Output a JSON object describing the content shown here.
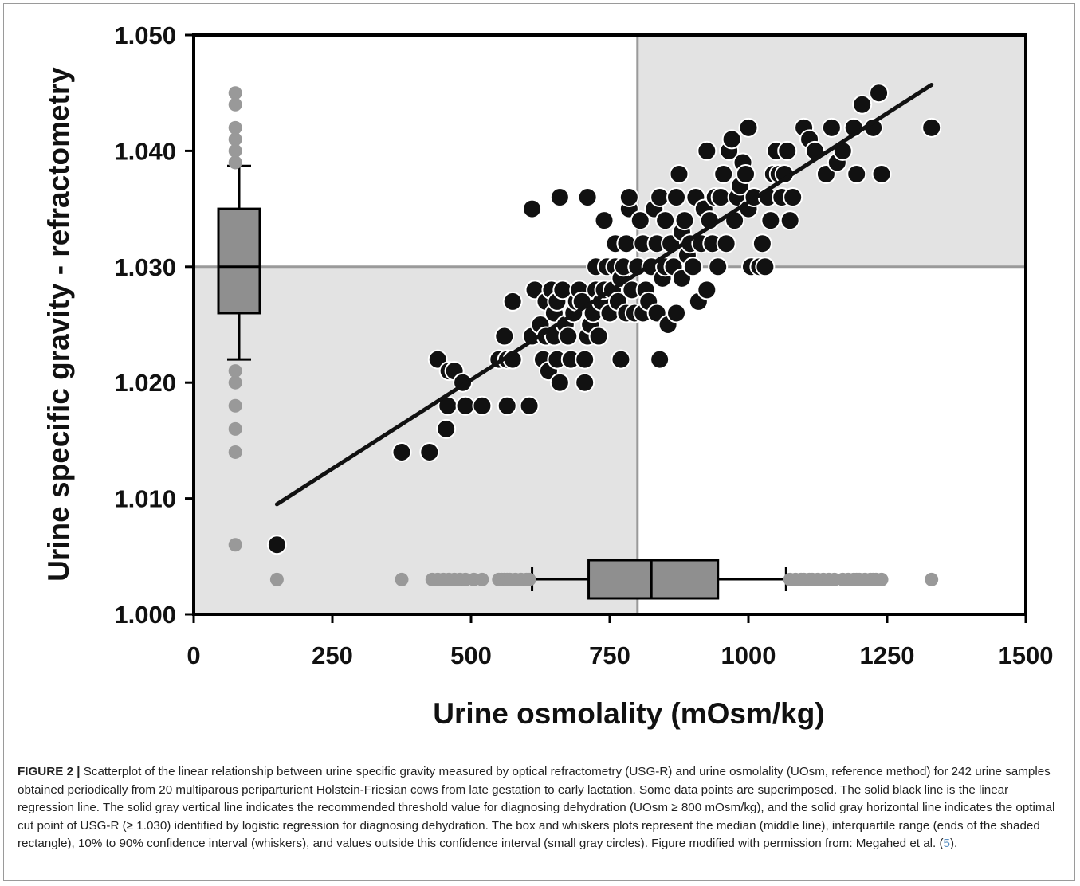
{
  "chart_data": {
    "type": "scatter",
    "xlabel": "Urine osmolality (mOsm/kg)",
    "ylabel": "Urine specific gravity - refractometry",
    "xlim": [
      0,
      1500
    ],
    "ylim": [
      1.0,
      1.05
    ],
    "xticks": [
      "0",
      "250",
      "500",
      "750",
      "1000",
      "1250",
      "1500"
    ],
    "yticks": [
      "1.000",
      "1.010",
      "1.020",
      "1.030",
      "1.040",
      "1.050"
    ],
    "xtick_values": [
      0,
      250,
      500,
      750,
      1000,
      1250,
      1500
    ],
    "ytick_values": [
      1.0,
      1.01,
      1.02,
      1.03,
      1.04,
      1.05
    ],
    "grid": false,
    "threshold_x": 800,
    "cutpoint_y": 1.03,
    "shaded_quadrants": [
      "lower-left",
      "upper-right"
    ],
    "regression_line": {
      "x": [
        150,
        1330
      ],
      "y": [
        1.0095,
        1.0457
      ]
    },
    "points": [
      [
        150,
        1.006
      ],
      [
        375,
        1.014
      ],
      [
        425,
        1.014
      ],
      [
        440,
        1.022
      ],
      [
        455,
        1.016
      ],
      [
        458,
        1.018
      ],
      [
        460,
        1.021
      ],
      [
        470,
        1.021
      ],
      [
        485,
        1.02
      ],
      [
        490,
        1.018
      ],
      [
        520,
        1.018
      ],
      [
        550,
        1.022
      ],
      [
        560,
        1.024
      ],
      [
        565,
        1.022
      ],
      [
        565,
        1.018
      ],
      [
        575,
        1.027
      ],
      [
        575,
        1.022
      ],
      [
        605,
        1.018
      ],
      [
        610,
        1.024
      ],
      [
        610,
        1.035
      ],
      [
        615,
        1.028
      ],
      [
        625,
        1.025
      ],
      [
        630,
        1.022
      ],
      [
        635,
        1.027
      ],
      [
        635,
        1.024
      ],
      [
        640,
        1.021
      ],
      [
        645,
        1.028
      ],
      [
        650,
        1.024
      ],
      [
        650,
        1.026
      ],
      [
        655,
        1.022
      ],
      [
        655,
        1.027
      ],
      [
        660,
        1.02
      ],
      [
        660,
        1.036
      ],
      [
        665,
        1.028
      ],
      [
        670,
        1.025
      ],
      [
        675,
        1.024
      ],
      [
        680,
        1.022
      ],
      [
        685,
        1.026
      ],
      [
        690,
        1.027
      ],
      [
        695,
        1.028
      ],
      [
        700,
        1.027
      ],
      [
        705,
        1.022
      ],
      [
        705,
        1.02
      ],
      [
        710,
        1.036
      ],
      [
        710,
        1.024
      ],
      [
        715,
        1.025
      ],
      [
        720,
        1.026
      ],
      [
        725,
        1.028
      ],
      [
        725,
        1.03
      ],
      [
        730,
        1.024
      ],
      [
        735,
        1.027
      ],
      [
        740,
        1.028
      ],
      [
        740,
        1.034
      ],
      [
        745,
        1.03
      ],
      [
        750,
        1.026
      ],
      [
        755,
        1.028
      ],
      [
        760,
        1.03
      ],
      [
        760,
        1.032
      ],
      [
        765,
        1.027
      ],
      [
        770,
        1.022
      ],
      [
        770,
        1.029
      ],
      [
        775,
        1.03
      ],
      [
        780,
        1.026
      ],
      [
        780,
        1.032
      ],
      [
        785,
        1.035
      ],
      [
        785,
        1.036
      ],
      [
        790,
        1.028
      ],
      [
        795,
        1.026
      ],
      [
        800,
        1.03
      ],
      [
        805,
        1.034
      ],
      [
        810,
        1.026
      ],
      [
        810,
        1.032
      ],
      [
        815,
        1.028
      ],
      [
        820,
        1.027
      ],
      [
        825,
        1.03
      ],
      [
        830,
        1.035
      ],
      [
        835,
        1.026
      ],
      [
        835,
        1.032
      ],
      [
        840,
        1.036
      ],
      [
        840,
        1.022
      ],
      [
        845,
        1.029
      ],
      [
        850,
        1.03
      ],
      [
        850,
        1.034
      ],
      [
        855,
        1.025
      ],
      [
        860,
        1.032
      ],
      [
        865,
        1.03
      ],
      [
        870,
        1.036
      ],
      [
        870,
        1.026
      ],
      [
        875,
        1.038
      ],
      [
        880,
        1.033
      ],
      [
        880,
        1.029
      ],
      [
        885,
        1.034
      ],
      [
        890,
        1.031
      ],
      [
        895,
        1.032
      ],
      [
        900,
        1.03
      ],
      [
        905,
        1.036
      ],
      [
        910,
        1.027
      ],
      [
        915,
        1.032
      ],
      [
        920,
        1.035
      ],
      [
        925,
        1.028
      ],
      [
        925,
        1.04
      ],
      [
        930,
        1.034
      ],
      [
        935,
        1.032
      ],
      [
        940,
        1.036
      ],
      [
        945,
        1.03
      ],
      [
        950,
        1.036
      ],
      [
        955,
        1.038
      ],
      [
        960,
        1.032
      ],
      [
        965,
        1.04
      ],
      [
        970,
        1.041
      ],
      [
        975,
        1.034
      ],
      [
        980,
        1.036
      ],
      [
        985,
        1.037
      ],
      [
        990,
        1.039
      ],
      [
        995,
        1.038
      ],
      [
        1000,
        1.035
      ],
      [
        1000,
        1.042
      ],
      [
        1005,
        1.03
      ],
      [
        1010,
        1.036
      ],
      [
        1020,
        1.03
      ],
      [
        1025,
        1.032
      ],
      [
        1030,
        1.03
      ],
      [
        1035,
        1.036
      ],
      [
        1040,
        1.034
      ],
      [
        1045,
        1.038
      ],
      [
        1050,
        1.04
      ],
      [
        1055,
        1.038
      ],
      [
        1060,
        1.036
      ],
      [
        1065,
        1.038
      ],
      [
        1070,
        1.04
      ],
      [
        1075,
        1.034
      ],
      [
        1080,
        1.036
      ],
      [
        1100,
        1.042
      ],
      [
        1110,
        1.041
      ],
      [
        1120,
        1.04
      ],
      [
        1140,
        1.038
      ],
      [
        1150,
        1.042
      ],
      [
        1160,
        1.039
      ],
      [
        1170,
        1.04
      ],
      [
        1190,
        1.042
      ],
      [
        1195,
        1.038
      ],
      [
        1205,
        1.044
      ],
      [
        1225,
        1.042
      ],
      [
        1235,
        1.045
      ],
      [
        1240,
        1.038
      ],
      [
        1330,
        1.042
      ]
    ],
    "y_boxplot": {
      "x": 75,
      "whisker_low": 1.022,
      "q1": 1.026,
      "median": 1.03,
      "q3": 1.035,
      "whisker_high": 1.0387,
      "outliers": [
        1.045,
        1.044,
        1.042,
        1.041,
        1.04,
        1.039,
        1.021,
        1.02,
        1.018,
        1.016,
        1.014,
        1.006
      ]
    },
    "x_boxplot": {
      "y": 1.003,
      "whisker_low": 610,
      "q1": 712,
      "median": 825,
      "q3": 945,
      "whisker_high": 1068,
      "outliers": [
        150,
        375,
        430,
        440,
        450,
        460,
        470,
        480,
        490,
        505,
        520,
        550,
        555,
        560,
        565,
        570,
        580,
        590,
        600,
        605,
        1075,
        1085,
        1095,
        1100,
        1110,
        1115,
        1125,
        1135,
        1145,
        1155,
        1170,
        1180,
        1190,
        1195,
        1200,
        1210,
        1220,
        1225,
        1230,
        1240,
        1330
      ]
    }
  },
  "caption": {
    "label": "FIGURE 2 |",
    "text_before_ref": " Scatterplot of the linear relationship between urine specific gravity measured by optical refractometry (USG-R) and urine osmolality (UOsm, reference method) for 242 urine samples obtained periodically from 20 multiparous periparturient Holstein-Friesian cows from late gestation to early lactation. Some data points are superimposed. The solid black line is the linear regression line. The solid gray vertical line indicates the recommended threshold value for diagnosing dehydration (UOsm ≥ 800 mOsm/kg), and the solid gray horizontal line indicates the optimal cut point of USG-R (≥ 1.030) identified by logistic regression for diagnosing dehydration. The box and whiskers plots represent the median (middle line), interquartile range (ends of the shaded rectangle), 10% to 90% confidence interval (whiskers), and values outside this confidence interval (small gray circles). Figure modified with permission from: Megahed et al. (",
    "ref": "5",
    "text_after_ref": ")."
  }
}
